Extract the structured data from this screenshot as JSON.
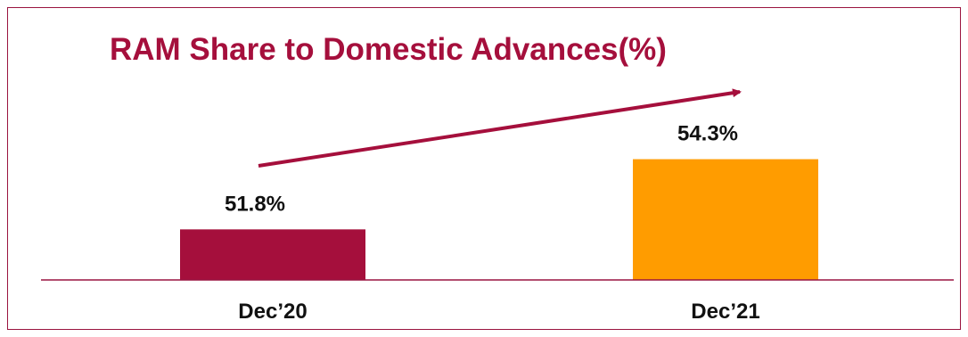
{
  "chart_data": {
    "type": "bar",
    "title": "RAM Share to Domestic Advances(%)",
    "categories": [
      "Dec’20",
      "Dec’21"
    ],
    "values": [
      51.8,
      54.3
    ],
    "data_labels": [
      "51.8%",
      "54.3%"
    ],
    "xlabel": "",
    "ylabel": "",
    "grid": false,
    "legend": "none",
    "trend_arrow": true
  },
  "colors": {
    "frame": "#9a1440",
    "title": "#a50f3c",
    "bars": [
      "#a50f3c",
      "#ff9c00"
    ],
    "trend_arrow": "#a50f3c",
    "baseline": "#9a1440"
  }
}
